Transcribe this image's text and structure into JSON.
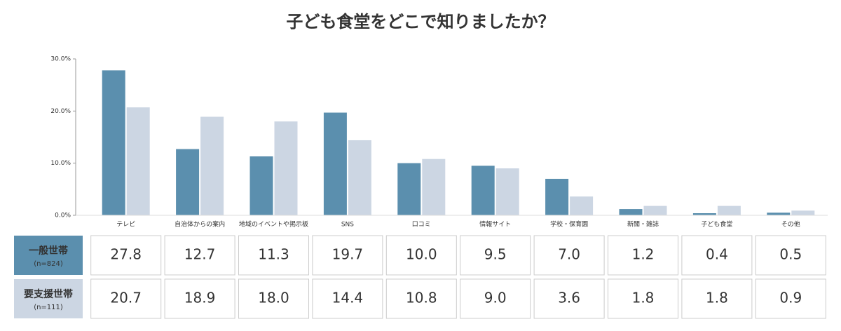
{
  "chart_data": {
    "type": "bar",
    "title": "子ども食堂をどこで知りましたか？",
    "categories": [
      "テレビ",
      "自治体からの案内",
      "地域のイベントや掲示板",
      "SNS",
      "口コミ",
      "情報サイト",
      "学校・保育園",
      "新聞・雑誌",
      "子ども食堂",
      "その他"
    ],
    "series": [
      {
        "name": "一般世帯",
        "note": "(n=824)",
        "color": "#5b8fae",
        "values": [
          27.8,
          12.7,
          11.3,
          19.7,
          10.0,
          9.5,
          7.0,
          1.2,
          0.4,
          0.5
        ],
        "value_labels": [
          "27.8",
          "12.7",
          "11.3",
          "19.7",
          "10.0",
          "9.5",
          "7.0",
          "1.2",
          "0.4",
          "0.5"
        ]
      },
      {
        "name": "要支援世帯",
        "note": "(n=111)",
        "color": "#ccd6e3",
        "values": [
          20.7,
          18.9,
          18.0,
          14.4,
          10.8,
          9.0,
          3.6,
          1.8,
          1.8,
          0.9
        ],
        "value_labels": [
          "20.7",
          "18.9",
          "18.0",
          "14.4",
          "10.8",
          "9.0",
          "3.6",
          "1.8",
          "1.8",
          "0.9"
        ]
      }
    ],
    "ylim": [
      0,
      30
    ],
    "yticks": [
      {
        "value": 0,
        "label": "0.0%"
      },
      {
        "value": 10,
        "label": "10.0%"
      },
      {
        "value": 20,
        "label": "20.0%"
      },
      {
        "value": 30,
        "label": "30.0%"
      }
    ]
  }
}
